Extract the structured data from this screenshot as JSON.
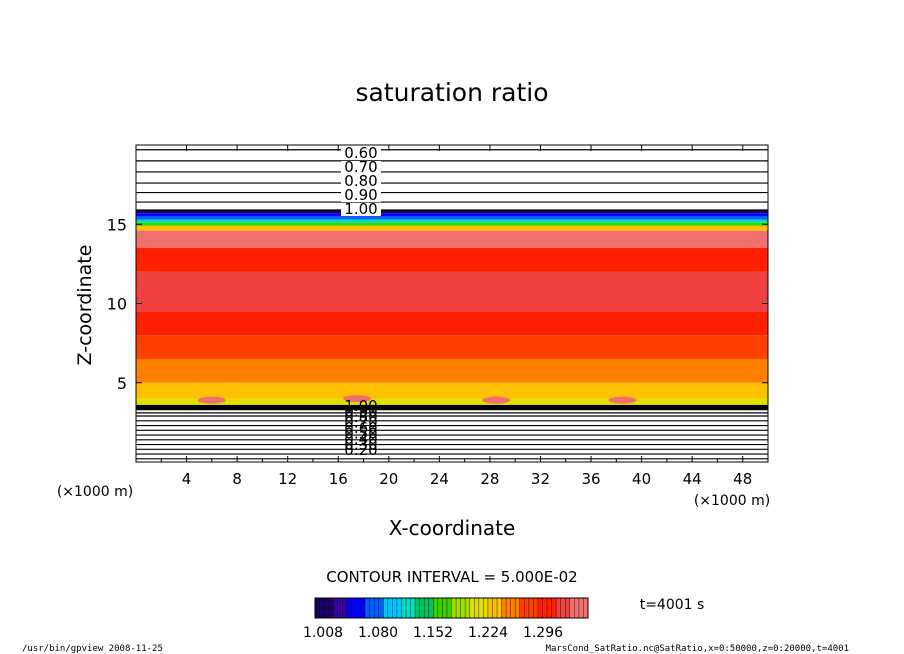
{
  "chart_data": {
    "type": "heatmap",
    "title": "saturation ratio",
    "xlabel": "X-coordinate",
    "ylabel": "Z-coordinate",
    "x_unit": "(×1000 m)",
    "z_unit": "(×1000 m)",
    "xlim": [
      0,
      50
    ],
    "zlim": [
      0,
      20
    ],
    "x_ticks": [
      4,
      8,
      12,
      16,
      20,
      24,
      28,
      32,
      36,
      40,
      44,
      48
    ],
    "z_ticks": [
      5,
      10,
      15
    ],
    "contour_interval_text": "CONTOUR INTERVAL = 5.000E-02",
    "time_text": "t=4001 s",
    "colorbar": {
      "ticks": [
        "1.008",
        "1.080",
        "1.152",
        "1.224",
        "1.296"
      ],
      "min": 1.008,
      "max": 1.344,
      "colors": [
        "#1a0060",
        "#3a00a0",
        "#0000ff",
        "#0060ff",
        "#00c8ff",
        "#00e0c0",
        "#00c060",
        "#40d000",
        "#a0e000",
        "#e0e000",
        "#ffc000",
        "#ff8000",
        "#ff4000",
        "#ff2000",
        "#f04040",
        "#f07070"
      ]
    },
    "upper_contour_labels": [
      "0.60",
      "0.70",
      "0.80",
      "0.90",
      "1.00"
    ],
    "upper_contour_levels_z": [
      15.9,
      16.4,
      17.0,
      17.6,
      18.3,
      19.0,
      19.7
    ],
    "lower_contour_labels": [
      "1.00",
      "0.90",
      "0.80",
      "0.70",
      "0.60",
      "0.50",
      "0.40",
      "0.30",
      "0.20"
    ],
    "lower_contour_levels_z": [
      3.3,
      3.1,
      2.9,
      2.6,
      2.3,
      2.0,
      1.7,
      1.4,
      1.1,
      0.8,
      0.5,
      0.2
    ],
    "field_bands": [
      {
        "z0": 3.3,
        "z1": 3.6,
        "value": 1.05
      },
      {
        "z0": 3.6,
        "z1": 4.0,
        "value": 1.2
      },
      {
        "z0": 4.0,
        "z1": 5.0,
        "value": 1.235
      },
      {
        "z0": 5.0,
        "z1": 6.5,
        "value": 1.25
      },
      {
        "z0": 6.5,
        "z1": 8.0,
        "value": 1.27
      },
      {
        "z0": 8.0,
        "z1": 9.5,
        "value": 1.29
      },
      {
        "z0": 9.5,
        "z1": 12.0,
        "value": 1.315
      },
      {
        "z0": 12.0,
        "z1": 13.5,
        "value": 1.3
      },
      {
        "z0": 13.5,
        "z1": 14.6,
        "value": 1.325
      },
      {
        "z0": 14.6,
        "z1": 14.9,
        "value": 1.22
      },
      {
        "z0": 14.9,
        "z1": 15.1,
        "value": 1.17
      },
      {
        "z0": 15.1,
        "z1": 15.3,
        "value": 1.12
      },
      {
        "z0": 15.3,
        "z1": 15.5,
        "value": 1.09
      },
      {
        "z0": 15.5,
        "z1": 15.7,
        "value": 1.05
      },
      {
        "z0": 15.7,
        "z1": 15.9,
        "value": 1.02
      }
    ],
    "blobs": [
      {
        "x": 6.0,
        "z": 3.9
      },
      {
        "x": 17.5,
        "z": 4.0
      },
      {
        "x": 28.5,
        "z": 3.9
      },
      {
        "x": 38.5,
        "z": 3.9
      }
    ]
  },
  "footer": {
    "left": "/usr/bin/gpview   2008-11-25",
    "right": "MarsCond_SatRatio.nc@SatRatio,x=0:50000,z=0:20000,t=4001"
  }
}
